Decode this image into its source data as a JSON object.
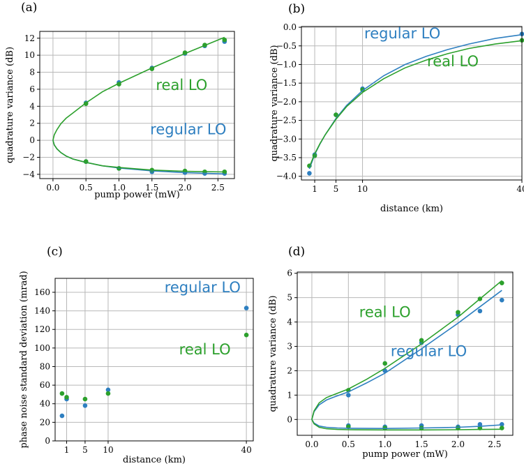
{
  "colors": {
    "regular": "#2e7fc0",
    "real": "#2ca02c"
  },
  "chart_data": [
    {
      "id": "a",
      "type": "scatter",
      "panel_label": "(a)",
      "xlabel": "pump power (mW)",
      "ylabel": "quadrature variance (dB)",
      "xlim": [
        -0.2,
        2.75
      ],
      "ylim": [
        -4.5,
        12.8
      ],
      "xticks": [
        0.0,
        0.5,
        1.0,
        1.5,
        2.0,
        2.5
      ],
      "xtick_labels": [
        "0.0",
        "0.5",
        "1.0",
        "1.5",
        "2.0",
        "2.5"
      ],
      "yticks": [
        -4,
        -2,
        0,
        2,
        4,
        6,
        8,
        10,
        12
      ],
      "ytick_labels": [
        "−4",
        "−2",
        "0",
        "2",
        "4",
        "6",
        "8",
        "10",
        "12"
      ],
      "grid": true,
      "annotations": [
        {
          "text": "real LO",
          "series": "real",
          "x": 1.95,
          "y": 5.9
        },
        {
          "text": "regular LO",
          "series": "regular",
          "x": 2.05,
          "y": 0.7
        }
      ],
      "series": [
        {
          "key": "regular",
          "kind": "points",
          "x": [
            0.5,
            0.5,
            1.0,
            1.0,
            1.5,
            1.5,
            2.0,
            2.0,
            2.3,
            2.3,
            2.6,
            2.6
          ],
          "y": [
            4.4,
            -2.5,
            6.8,
            -3.3,
            8.5,
            -3.7,
            10.2,
            -3.8,
            11.1,
            -3.9,
            11.6,
            -3.9
          ]
        },
        {
          "key": "real",
          "kind": "points",
          "x": [
            0.5,
            0.5,
            1.0,
            1.0,
            1.5,
            1.5,
            2.0,
            2.0,
            2.3,
            2.3,
            2.6,
            2.6
          ],
          "y": [
            4.3,
            -2.5,
            6.6,
            -3.3,
            8.4,
            -3.5,
            10.3,
            -3.6,
            11.2,
            -3.7,
            11.8,
            -3.7
          ]
        },
        {
          "key": "regular",
          "kind": "line",
          "x": [
            0,
            0.02,
            0.06,
            0.12,
            0.2,
            0.3,
            0.5,
            0.75,
            1.0,
            1.5,
            2.0,
            2.6
          ],
          "y": [
            0,
            -0.55,
            -1.0,
            -1.45,
            -1.85,
            -2.2,
            -2.6,
            -3.0,
            -3.25,
            -3.6,
            -3.8,
            -3.95
          ]
        },
        {
          "key": "real",
          "kind": "line",
          "x": [
            0,
            0.02,
            0.06,
            0.12,
            0.2,
            0.3,
            0.5,
            0.75,
            1.0,
            1.5,
            2.0,
            2.6
          ],
          "y": [
            0,
            -0.55,
            -1.0,
            -1.45,
            -1.85,
            -2.2,
            -2.6,
            -3.0,
            -3.2,
            -3.5,
            -3.65,
            -3.72
          ]
        },
        {
          "key": "real",
          "kind": "line",
          "x": [
            0,
            0.02,
            0.06,
            0.12,
            0.2,
            0.3,
            0.5,
            0.75,
            1.0,
            1.5,
            2.0,
            2.6
          ],
          "y": [
            0,
            0.65,
            1.25,
            1.95,
            2.6,
            3.2,
            4.4,
            5.7,
            6.7,
            8.5,
            10.2,
            12.1
          ]
        }
      ]
    },
    {
      "id": "b",
      "type": "scatter",
      "panel_label": "(b)",
      "xlabel": "distance (km)",
      "ylabel": "quadrature variance (dB)",
      "xlim": [
        -1.5,
        40
      ],
      "ylim": [
        -4.1,
        0.02
      ],
      "xticks": [
        1,
        5,
        10,
        40
      ],
      "xtick_labels": [
        "1",
        "5",
        "10",
        "40"
      ],
      "yticks": [
        -4.0,
        -3.5,
        -3.0,
        -2.5,
        -2.0,
        -1.5,
        -1.0,
        -0.5,
        0.0
      ],
      "ytick_labels": [
        "−4.0",
        "−3.5",
        "−3.0",
        "−2.5",
        "−2.0",
        "−1.5",
        "−1.0",
        "−0.5",
        "0.0"
      ],
      "grid": true,
      "annotations": [
        {
          "text": "regular LO",
          "series": "regular",
          "x": 17.5,
          "y": -0.3
        },
        {
          "text": "real LO",
          "series": "real",
          "x": 27,
          "y": -1.05
        }
      ],
      "series": [
        {
          "key": "regular",
          "kind": "points",
          "x": [
            0,
            1,
            5,
            10,
            40
          ],
          "y": [
            -3.92,
            -3.42,
            -2.35,
            -1.65,
            -0.18
          ]
        },
        {
          "key": "real",
          "kind": "points",
          "x": [
            0,
            1,
            5,
            10,
            40
          ],
          "y": [
            -3.72,
            -3.45,
            -2.35,
            -1.68,
            -0.35
          ]
        },
        {
          "key": "regular",
          "kind": "line",
          "x": [
            0,
            1,
            2,
            3,
            5,
            7,
            10,
            14,
            18,
            22,
            26,
            30,
            35,
            40
          ],
          "y": [
            -3.8,
            -3.42,
            -3.13,
            -2.88,
            -2.45,
            -2.1,
            -1.7,
            -1.3,
            -1.0,
            -0.78,
            -0.6,
            -0.45,
            -0.3,
            -0.2
          ]
        },
        {
          "key": "real",
          "kind": "line",
          "x": [
            0,
            1,
            2,
            3,
            5,
            7,
            10,
            14,
            18,
            22,
            26,
            30,
            35,
            40
          ],
          "y": [
            -3.75,
            -3.4,
            -3.12,
            -2.88,
            -2.47,
            -2.13,
            -1.75,
            -1.38,
            -1.09,
            -0.88,
            -0.71,
            -0.57,
            -0.45,
            -0.36
          ]
        }
      ]
    },
    {
      "id": "c",
      "type": "scatter",
      "panel_label": "(c)",
      "xlabel": "distance (km)",
      "ylabel": "phase noise standard deviation (mrad)",
      "xlim": [
        -1.5,
        41.5
      ],
      "ylim": [
        0,
        175
      ],
      "xticks": [
        1,
        5,
        10,
        40
      ],
      "xtick_labels": [
        "1",
        "5",
        "10",
        "40"
      ],
      "yticks": [
        0,
        20,
        40,
        60,
        80,
        100,
        120,
        140,
        160
      ],
      "ytick_labels": [
        "0",
        "20",
        "40",
        "60",
        "80",
        "100",
        "120",
        "140",
        "160"
      ],
      "grid": true,
      "annotations": [
        {
          "text": "regular LO",
          "series": "regular",
          "x": 30.5,
          "y": 160
        },
        {
          "text": "real LO",
          "series": "real",
          "x": 31,
          "y": 93
        }
      ],
      "series": [
        {
          "key": "regular",
          "kind": "points",
          "x": [
            0,
            1,
            5,
            10,
            40
          ],
          "y": [
            27,
            45,
            38,
            55,
            143
          ]
        },
        {
          "key": "real",
          "kind": "points",
          "x": [
            0,
            1,
            5,
            10,
            40
          ],
          "y": [
            51,
            47,
            45,
            51,
            114
          ]
        }
      ]
    },
    {
      "id": "d",
      "type": "scatter",
      "panel_label": "(d)",
      "xlabel": "pump power (mW)",
      "ylabel": "quadrature variance (dB)",
      "xlim": [
        -0.2,
        2.75
      ],
      "ylim": [
        -0.65,
        6.05
      ],
      "xticks": [
        0.0,
        0.5,
        1.0,
        1.5,
        2.0,
        2.5
      ],
      "xtick_labels": [
        "0.0",
        "0.5",
        "1.0",
        "1.5",
        "2.0",
        "2.5"
      ],
      "yticks": [
        0,
        1,
        2,
        3,
        4,
        5,
        6
      ],
      "ytick_labels": [
        "0",
        "1",
        "2",
        "3",
        "4",
        "5",
        "6"
      ],
      "grid": true,
      "annotations": [
        {
          "text": "real LO",
          "series": "real",
          "x": 1.0,
          "y": 4.2
        },
        {
          "text": "regular LO",
          "series": "regular",
          "x": 1.6,
          "y": 2.6
        }
      ],
      "series": [
        {
          "key": "regular",
          "kind": "points",
          "x": [
            0.5,
            0.5,
            1.0,
            1.0,
            1.5,
            1.5,
            2.0,
            2.0,
            2.3,
            2.3,
            2.6,
            2.6
          ],
          "y": [
            1.0,
            -0.25,
            2.0,
            -0.3,
            3.15,
            -0.25,
            4.3,
            -0.3,
            4.45,
            -0.2,
            4.9,
            -0.2
          ]
        },
        {
          "key": "real",
          "kind": "points",
          "x": [
            0.5,
            0.5,
            1.0,
            1.0,
            1.5,
            1.5,
            2.0,
            2.0,
            2.3,
            2.3,
            2.6,
            2.6
          ],
          "y": [
            1.2,
            -0.3,
            2.3,
            -0.35,
            3.25,
            -0.35,
            4.4,
            -0.35,
            4.95,
            -0.35,
            5.6,
            -0.35
          ]
        },
        {
          "key": "regular",
          "kind": "line",
          "x": [
            0,
            0.03,
            0.1,
            0.2,
            0.3,
            0.5,
            0.75,
            1.0,
            1.5,
            2.0,
            2.6
          ],
          "y": [
            0,
            0.32,
            0.6,
            0.8,
            0.92,
            1.13,
            1.5,
            1.9,
            2.9,
            3.95,
            5.3
          ]
        },
        {
          "key": "real",
          "kind": "line",
          "x": [
            0,
            0.03,
            0.1,
            0.2,
            0.3,
            0.5,
            0.75,
            1.0,
            1.5,
            2.0,
            2.6
          ],
          "y": [
            0,
            0.35,
            0.68,
            0.9,
            1.02,
            1.25,
            1.65,
            2.1,
            3.1,
            4.2,
            5.7
          ]
        },
        {
          "key": "regular",
          "kind": "line",
          "x": [
            0,
            0.03,
            0.1,
            0.2,
            0.35,
            0.5,
            1.0,
            1.5,
            2.0,
            2.3,
            2.6
          ],
          "y": [
            0,
            -0.15,
            -0.27,
            -0.32,
            -0.35,
            -0.36,
            -0.37,
            -0.35,
            -0.32,
            -0.28,
            -0.22
          ]
        },
        {
          "key": "real",
          "kind": "line",
          "x": [
            0,
            0.03,
            0.1,
            0.2,
            0.35,
            0.5,
            1.0,
            1.5,
            2.0,
            2.3,
            2.6
          ],
          "y": [
            0,
            -0.18,
            -0.32,
            -0.38,
            -0.41,
            -0.42,
            -0.43,
            -0.43,
            -0.42,
            -0.41,
            -0.4
          ]
        }
      ]
    }
  ]
}
